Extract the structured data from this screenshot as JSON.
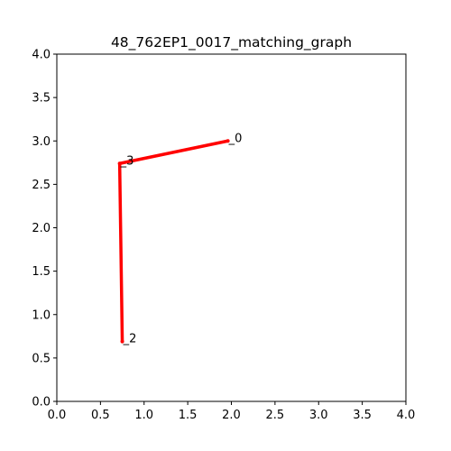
{
  "chart_data": {
    "type": "line",
    "title": "48_762EP1_0017_matching_graph",
    "xlabel": "",
    "ylabel": "",
    "xlim": [
      0.0,
      4.0
    ],
    "ylim": [
      0.0,
      4.0
    ],
    "grid": false,
    "x_ticks": [
      "0.0",
      "0.5",
      "1.0",
      "1.5",
      "2.0",
      "2.5",
      "3.0",
      "3.5",
      "4.0"
    ],
    "y_ticks": [
      "0.0",
      "0.5",
      "1.0",
      "1.5",
      "2.0",
      "2.5",
      "3.0",
      "3.5",
      "4.0"
    ],
    "nodes": [
      {
        "id": "0",
        "label": "0",
        "x": 1.96,
        "y": 3.0
      },
      {
        "id": "3",
        "label": "3",
        "x": 0.72,
        "y": 2.74
      },
      {
        "id": "2",
        "label": "2",
        "x": 0.75,
        "y": 0.69
      }
    ],
    "edges": [
      {
        "from": "0",
        "to": "3"
      },
      {
        "from": "3",
        "to": "2"
      }
    ],
    "edge_color": "#ff0000",
    "node_color": "#ff0000"
  }
}
